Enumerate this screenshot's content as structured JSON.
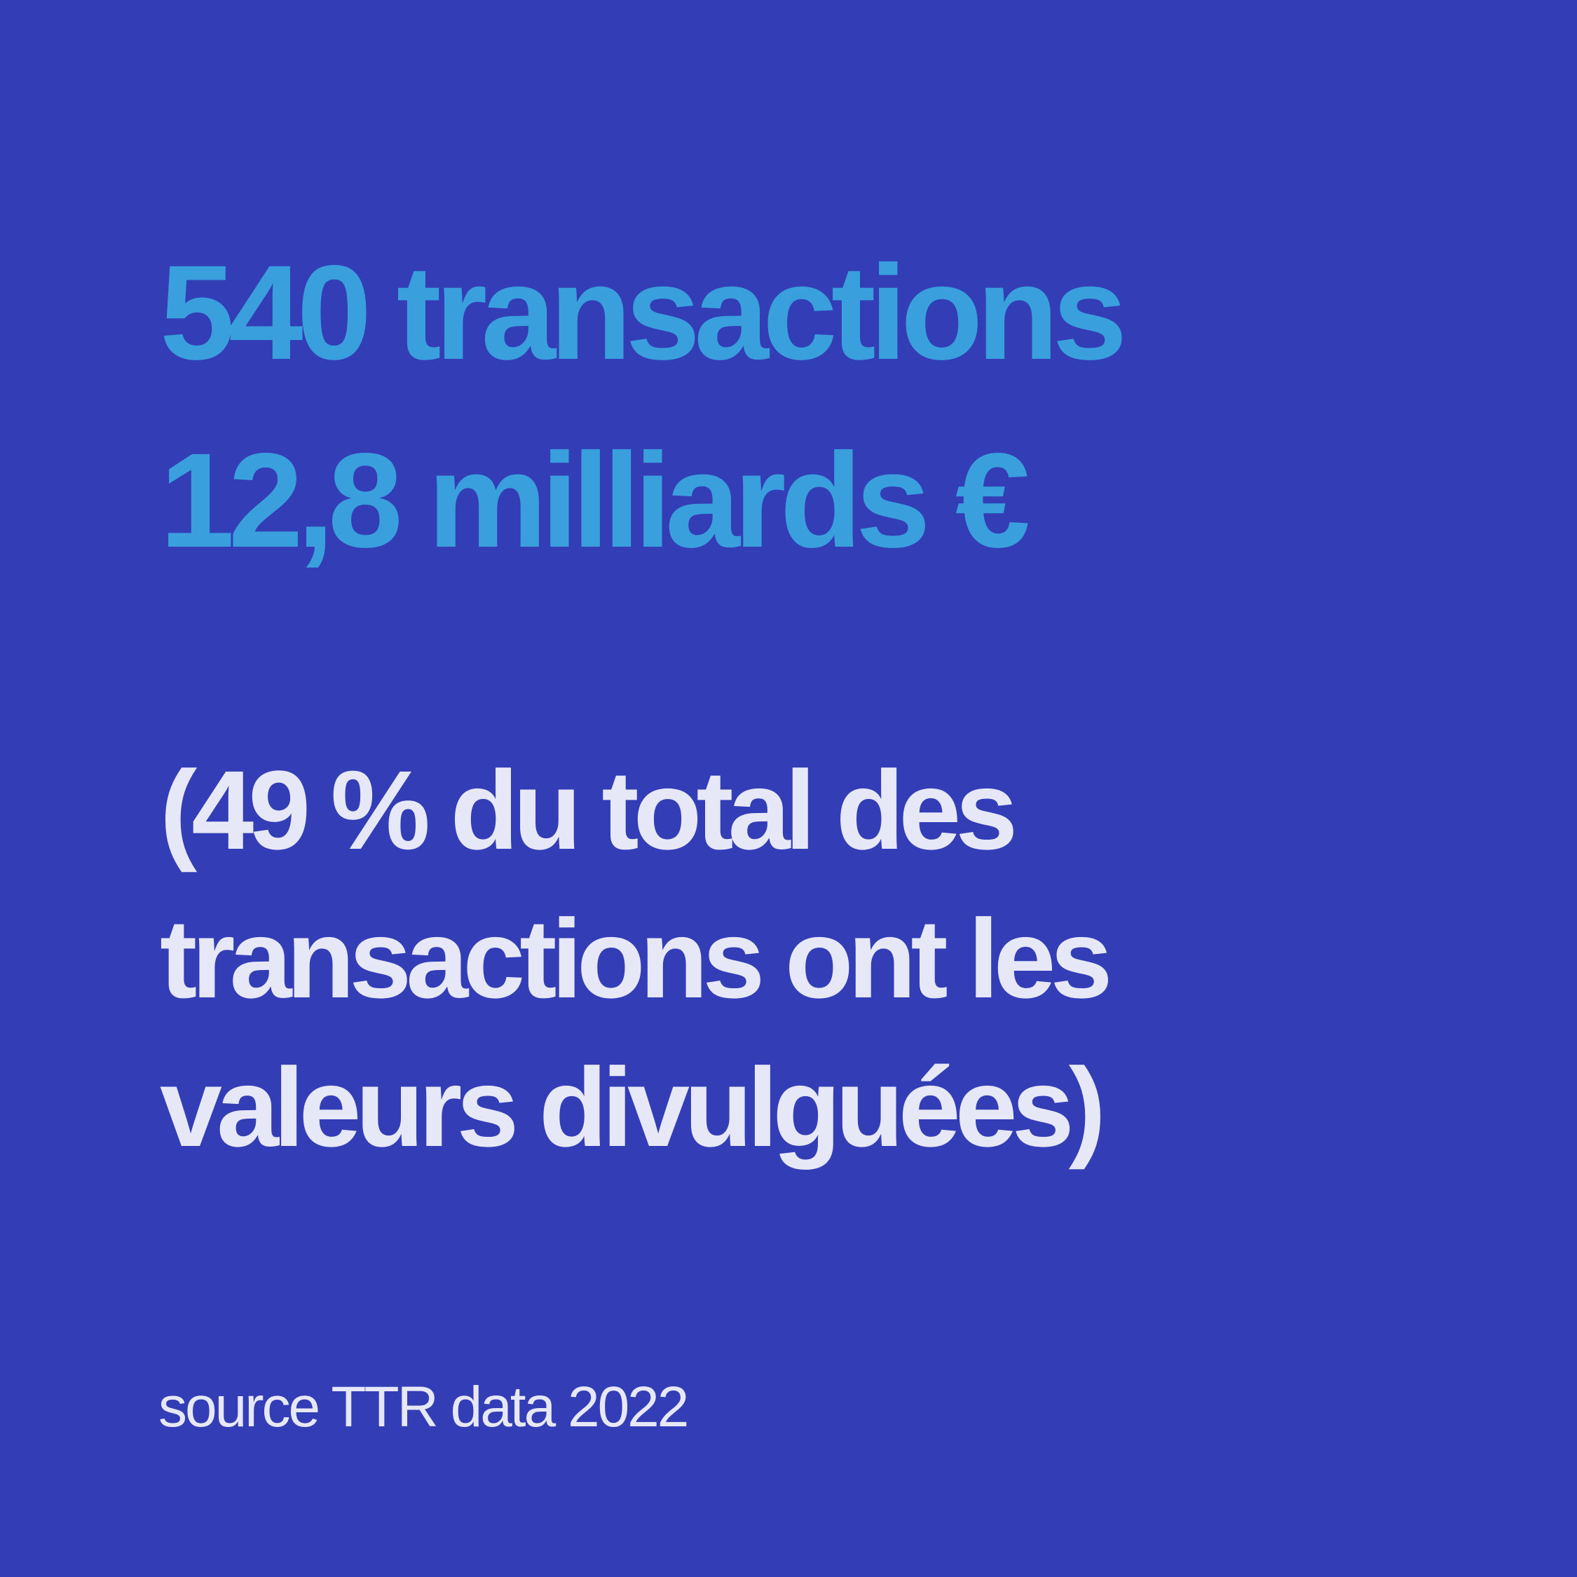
{
  "colors": {
    "background": "#333db5",
    "highlight": "#3aa0dd",
    "text": "#e6e8f8"
  },
  "headline": {
    "line1": "540 transactions",
    "line2": "12,8 milliards €"
  },
  "note": {
    "line1": "(49 % du total des",
    "line2": "transactions ont les",
    "line3": "valeurs divulguées)"
  },
  "source": "source TTR data 2022"
}
